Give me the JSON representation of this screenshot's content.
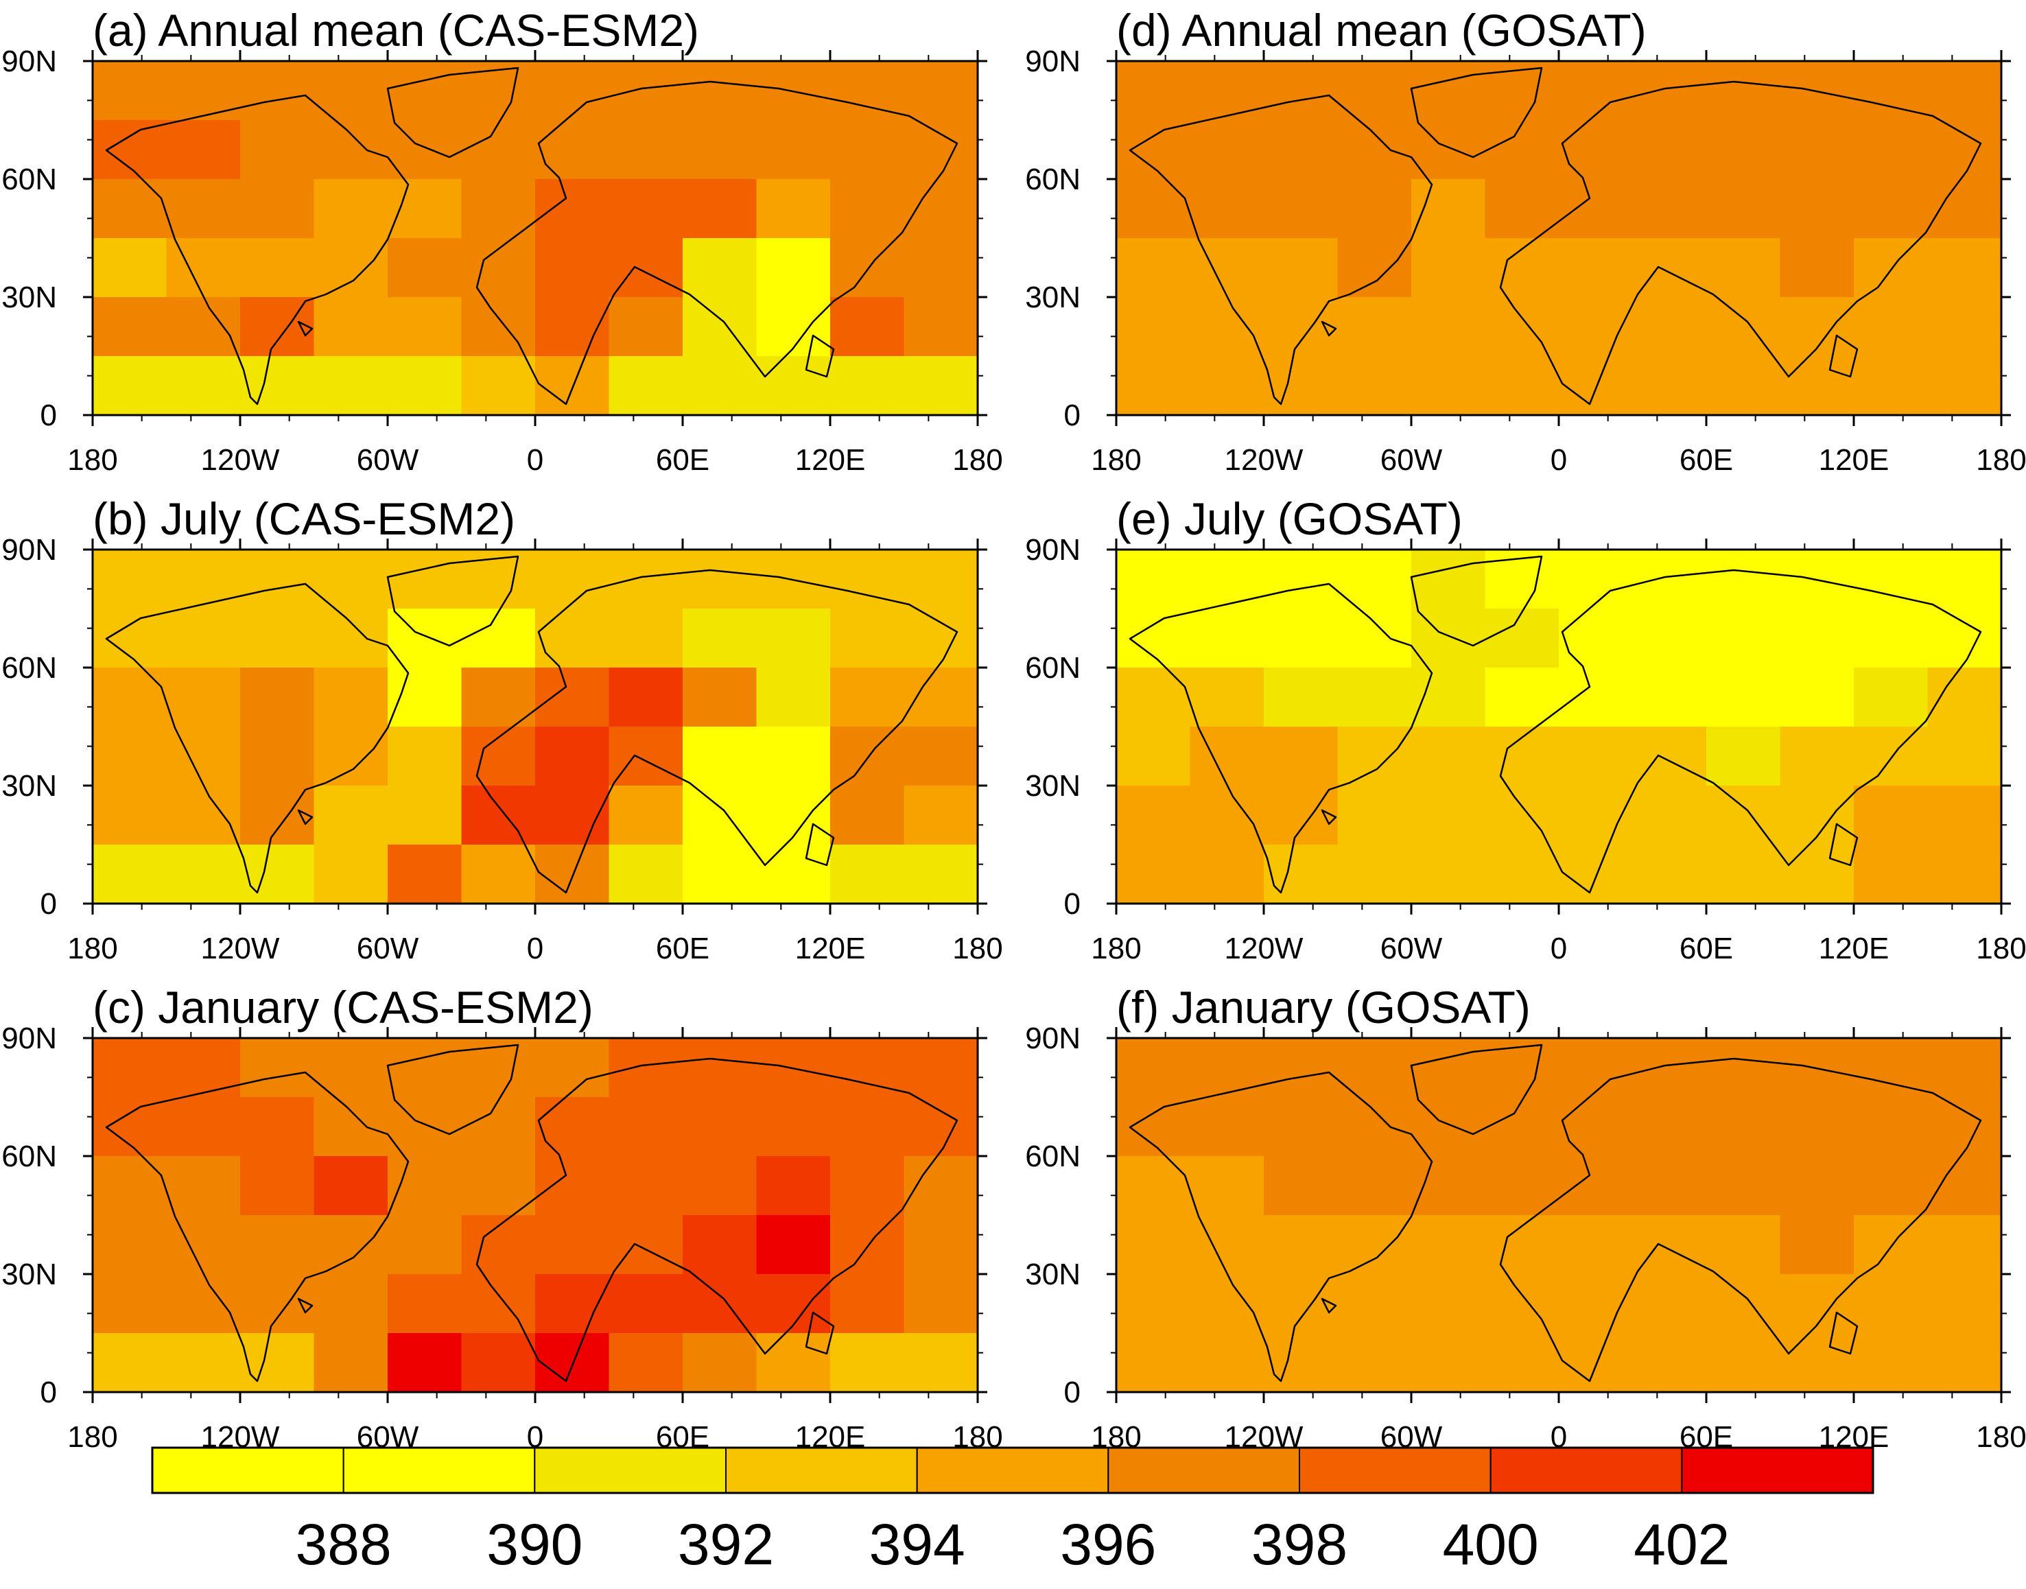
{
  "panels": [
    {
      "title": "(a) Annual mean (CAS-ESM2)",
      "y_ticks": [
        "90N",
        "60N",
        "30N",
        "0"
      ],
      "x_ticks": [
        "180",
        "120W",
        "60W",
        "0",
        "60E",
        "120E",
        "180"
      ],
      "fill_level_ppm": [
        [
          396,
          396,
          396,
          396,
          396,
          396,
          396,
          396,
          396,
          396,
          396,
          396
        ],
        [
          398,
          398,
          396,
          396,
          396,
          396,
          396,
          396,
          396,
          396,
          396,
          396
        ],
        [
          396,
          396,
          396,
          394,
          394,
          396,
          398,
          398,
          398,
          394,
          396,
          396
        ],
        [
          392,
          394,
          394,
          394,
          396,
          396,
          398,
          398,
          390,
          388,
          396,
          396
        ],
        [
          396,
          396,
          398,
          394,
          394,
          396,
          398,
          396,
          390,
          388,
          398,
          396
        ],
        [
          390,
          390,
          390,
          390,
          390,
          392,
          394,
          390,
          390,
          390,
          390,
          390
        ]
      ]
    },
    {
      "title": "(b) July (CAS-ESM2)",
      "y_ticks": [
        "90N",
        "60N",
        "30N",
        "0"
      ],
      "x_ticks": [
        "180",
        "120W",
        "60W",
        "0",
        "60E",
        "120E",
        "180"
      ],
      "fill_level_ppm": [
        [
          392,
          392,
          392,
          392,
          392,
          392,
          392,
          392,
          392,
          392,
          392,
          392
        ],
        [
          392,
          392,
          392,
          392,
          388,
          388,
          392,
          392,
          390,
          390,
          392,
          392
        ],
        [
          394,
          394,
          396,
          394,
          388,
          396,
          398,
          400,
          396,
          390,
          394,
          394
        ],
        [
          394,
          394,
          396,
          394,
          392,
          398,
          400,
          398,
          388,
          388,
          396,
          396
        ],
        [
          394,
          394,
          396,
          392,
          392,
          400,
          400,
          394,
          388,
          388,
          396,
          394
        ],
        [
          390,
          390,
          390,
          392,
          398,
          394,
          396,
          390,
          388,
          388,
          390,
          390
        ]
      ]
    },
    {
      "title": "(c) January (CAS-ESM2)",
      "y_ticks": [
        "90N",
        "60N",
        "30N",
        "0"
      ],
      "x_ticks": [
        "180",
        "120W",
        "60W",
        "0",
        "60E",
        "120E",
        "180"
      ],
      "fill_level_ppm": [
        [
          398,
          398,
          396,
          396,
          396,
          396,
          396,
          398,
          398,
          398,
          398,
          398
        ],
        [
          398,
          398,
          398,
          396,
          396,
          396,
          398,
          398,
          398,
          398,
          398,
          398
        ],
        [
          396,
          396,
          398,
          400,
          396,
          396,
          398,
          398,
          398,
          400,
          398,
          396
        ],
        [
          396,
          396,
          396,
          396,
          396,
          398,
          398,
          398,
          400,
          402,
          398,
          396
        ],
        [
          396,
          396,
          396,
          396,
          398,
          398,
          400,
          400,
          400,
          400,
          398,
          396
        ],
        [
          392,
          392,
          392,
          396,
          402,
          400,
          402,
          398,
          396,
          394,
          392,
          392
        ]
      ]
    },
    {
      "title": "(d) Annual mean (GOSAT)",
      "y_ticks": [
        "90N",
        "60N",
        "30N",
        "0"
      ],
      "x_ticks": [
        "180",
        "120W",
        "60W",
        "0",
        "60E",
        "120E",
        "180"
      ],
      "fill_level_ppm": [
        [
          396,
          396,
          396,
          396,
          396,
          396,
          396,
          396,
          396,
          396,
          396,
          396
        ],
        [
          396,
          396,
          396,
          396,
          396,
          396,
          396,
          396,
          396,
          396,
          396,
          396
        ],
        [
          396,
          396,
          396,
          396,
          394,
          396,
          396,
          396,
          396,
          396,
          396,
          396
        ],
        [
          394,
          394,
          394,
          396,
          394,
          394,
          394,
          394,
          394,
          396,
          394,
          394
        ],
        [
          394,
          394,
          394,
          394,
          394,
          394,
          394,
          394,
          394,
          394,
          394,
          394
        ],
        [
          394,
          394,
          394,
          394,
          394,
          394,
          394,
          394,
          394,
          394,
          394,
          394
        ]
      ]
    },
    {
      "title": "(e) July (GOSAT)",
      "y_ticks": [
        "90N",
        "60N",
        "30N",
        "0"
      ],
      "x_ticks": [
        "180",
        "120W",
        "60W",
        "0",
        "60E",
        "120E",
        "180"
      ],
      "fill_level_ppm": [
        [
          388,
          388,
          388,
          388,
          390,
          388,
          388,
          388,
          388,
          388,
          388,
          388
        ],
        [
          388,
          388,
          388,
          388,
          390,
          390,
          388,
          388,
          388,
          388,
          388,
          388
        ],
        [
          392,
          392,
          390,
          390,
          390,
          388,
          388,
          388,
          388,
          388,
          390,
          392
        ],
        [
          392,
          394,
          394,
          392,
          392,
          392,
          392,
          392,
          390,
          392,
          392,
          392
        ],
        [
          394,
          394,
          394,
          392,
          392,
          392,
          392,
          392,
          392,
          392,
          394,
          394
        ],
        [
          394,
          394,
          392,
          392,
          392,
          392,
          392,
          392,
          392,
          392,
          394,
          394
        ]
      ]
    },
    {
      "title": "(f) January (GOSAT)",
      "y_ticks": [
        "90N",
        "60N",
        "30N",
        "0"
      ],
      "x_ticks": [
        "180",
        "120W",
        "60W",
        "0",
        "60E",
        "120E",
        "180"
      ],
      "fill_level_ppm": [
        [
          396,
          396,
          396,
          396,
          396,
          396,
          396,
          396,
          396,
          396,
          396,
          396
        ],
        [
          396,
          396,
          396,
          396,
          396,
          396,
          396,
          396,
          396,
          396,
          396,
          396
        ],
        [
          394,
          394,
          396,
          396,
          396,
          396,
          396,
          396,
          396,
          396,
          396,
          396
        ],
        [
          394,
          394,
          394,
          394,
          394,
          394,
          394,
          394,
          394,
          396,
          394,
          394
        ],
        [
          394,
          394,
          394,
          394,
          394,
          394,
          394,
          394,
          394,
          394,
          394,
          394
        ],
        [
          394,
          394,
          394,
          394,
          394,
          394,
          394,
          394,
          394,
          394,
          394,
          394
        ]
      ]
    }
  ],
  "colorbar": {
    "labels": [
      "388",
      "390",
      "392",
      "394",
      "396",
      "398",
      "400",
      "402"
    ],
    "colors": [
      "#ffff00",
      "#ffff00",
      "#f2e600",
      "#f8c400",
      "#f8a200",
      "#f08400",
      "#f26000",
      "#f03800",
      "#ee0000"
    ]
  },
  "colors": {
    "land_outline": "#000000",
    "frame": "#000000"
  }
}
